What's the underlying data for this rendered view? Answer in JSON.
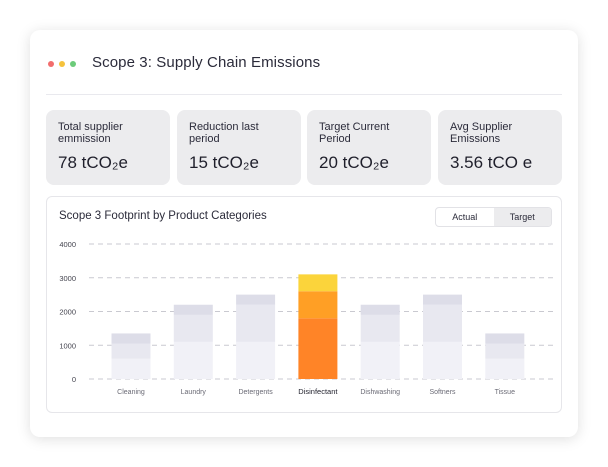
{
  "window": {
    "title": "Scope 3: Supply Chain Emissions",
    "dot_colors": [
      "#f26d6d",
      "#f5c23c",
      "#6ccb7a"
    ]
  },
  "stats": [
    {
      "label": "Total supplier emmission",
      "value": "78 tCO₂e"
    },
    {
      "label": "Reduction last period",
      "value": "15 tCO₂e"
    },
    {
      "label": "Target Current Period",
      "value": "20 tCO₂e"
    },
    {
      "label": "Avg Supplier Emissions",
      "value": "3.56 tCO e"
    }
  ],
  "chart_panel": {
    "title": "Scope 3 Footprint by Product Categories",
    "toggle": {
      "actual_label": "Actual",
      "target_label": "Target",
      "selected": "Target"
    }
  },
  "chart_data": {
    "type": "bar",
    "stacked": true,
    "title": "Scope 3 Footprint by Product Categories",
    "categories": [
      "Cleaning",
      "Laundry",
      "Detergents",
      "Disinfectant",
      "Dishwashing",
      "Softners",
      "Tissue"
    ],
    "y_ticks": [
      0,
      1000,
      2000,
      3000,
      4000
    ],
    "ylim": [
      0,
      4000
    ],
    "grid": true,
    "highlighted_category": "Disinfectant",
    "series": [
      {
        "values": [
          600,
          1100,
          1100,
          1800,
          1100,
          1100,
          600
        ]
      },
      {
        "values": [
          450,
          800,
          1100,
          800,
          800,
          1100,
          450
        ]
      },
      {
        "values": [
          300,
          300,
          300,
          500,
          300,
          300,
          300
        ]
      }
    ],
    "colors": {
      "muted": [
        "#f1f1f7",
        "#e8e8f0",
        "#dddde8"
      ],
      "highlight": [
        "#ff8427",
        "#ff9f25",
        "#fbd43b"
      ]
    }
  }
}
